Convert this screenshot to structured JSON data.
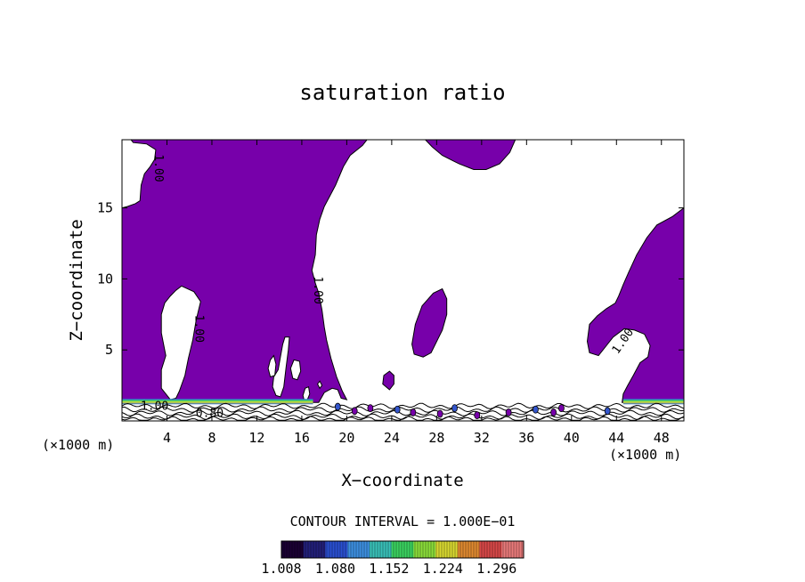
{
  "chart_data": {
    "type": "contour",
    "title": "saturation ratio",
    "xlabel": "X−coordinate",
    "ylabel": "Z−coordinate",
    "x_unit_label": "(×1000 m)",
    "z_unit_label": "(×1000 m)",
    "xlim": [
      0,
      50
    ],
    "ylim": [
      0,
      19.8
    ],
    "x_ticks": [
      4,
      8,
      12,
      16,
      20,
      24,
      28,
      32,
      36,
      40,
      44,
      48
    ],
    "y_ticks": [
      5,
      10,
      15
    ],
    "x_tick_labels": [
      "4",
      "8",
      "12",
      "16",
      "20",
      "24",
      "28",
      "32",
      "36",
      "40",
      "44",
      "48"
    ],
    "y_tick_labels": [
      "5",
      "10",
      "15"
    ],
    "contour_interval_text": "CONTOUR INTERVAL = 1.000E−01",
    "contour_labels": [
      {
        "text": "1.00",
        "x": 3.2,
        "z": 17.8,
        "rotation": 90
      },
      {
        "text": "1.00",
        "x": 17.4,
        "z": 9.2,
        "rotation": 90
      },
      {
        "text": "1.00",
        "x": 6.8,
        "z": 6.5,
        "rotation": 90
      },
      {
        "text": "1.00",
        "x": 44.6,
        "z": 5.6,
        "rotation": -55
      },
      {
        "text": "1.00",
        "x": 2.9,
        "z": 1.0,
        "rotation": 0
      },
      {
        "text": "0.80",
        "x": 7.8,
        "z": 0.5,
        "rotation": 0
      }
    ],
    "colorbar": {
      "min": 1.008,
      "max": 1.332,
      "tick_labels": [
        "1.008",
        "1.080",
        "1.152",
        "1.224",
        "1.296"
      ],
      "colors": [
        "#1a0033",
        "#22207a",
        "#2a4fd0",
        "#3d8fe0",
        "#39c0b8",
        "#3bd260",
        "#8bdc3a",
        "#d8d830",
        "#e08a30",
        "#d84848",
        "#e87a7a"
      ]
    },
    "fill_color": "#7700aa",
    "supersaturated_regions": [
      {
        "name": "left-plume",
        "points": [
          [
            0,
            15.0
          ],
          [
            0.5,
            15.1
          ],
          [
            1.2,
            15.3
          ],
          [
            1.6,
            15.5
          ],
          [
            1.7,
            16.6
          ],
          [
            2.0,
            17.4
          ],
          [
            2.5,
            17.9
          ],
          [
            2.9,
            18.4
          ],
          [
            3.0,
            19.1
          ],
          [
            2.2,
            19.5
          ],
          [
            1.0,
            19.6
          ],
          [
            0.8,
            19.8
          ],
          [
            21.8,
            19.8
          ],
          [
            21.4,
            19.4
          ],
          [
            20.3,
            18.7
          ],
          [
            19.7,
            17.9
          ],
          [
            19.0,
            16.6
          ],
          [
            18.0,
            15.1
          ],
          [
            17.6,
            14.2
          ],
          [
            17.3,
            13.1
          ],
          [
            17.2,
            11.7
          ],
          [
            16.9,
            10.6
          ],
          [
            17.2,
            9.7
          ],
          [
            17.5,
            9.0
          ],
          [
            17.8,
            7.8
          ],
          [
            18.0,
            6.6
          ],
          [
            18.2,
            5.7
          ],
          [
            18.6,
            4.4
          ],
          [
            19.1,
            3.1
          ],
          [
            19.6,
            2.1
          ],
          [
            20.0,
            1.5
          ],
          [
            19.5,
            1.6
          ],
          [
            19.2,
            2.2
          ],
          [
            18.7,
            2.3
          ],
          [
            18.0,
            2.0
          ],
          [
            17.5,
            1.3
          ],
          [
            0,
            1.3
          ]
        ]
      },
      {
        "name": "top-blob",
        "points": [
          [
            27.0,
            19.8
          ],
          [
            27.6,
            19.3
          ],
          [
            28.5,
            18.7
          ],
          [
            30.0,
            18.1
          ],
          [
            31.3,
            17.7
          ],
          [
            32.4,
            17.7
          ],
          [
            33.6,
            18.1
          ],
          [
            34.5,
            18.9
          ],
          [
            35.0,
            19.8
          ]
        ]
      },
      {
        "name": "right-plume",
        "points": [
          [
            50,
            15.0
          ],
          [
            49.0,
            14.4
          ],
          [
            47.6,
            13.8
          ],
          [
            46.7,
            12.9
          ],
          [
            45.8,
            11.7
          ],
          [
            45.1,
            10.5
          ],
          [
            44.6,
            9.6
          ],
          [
            44.2,
            8.8
          ],
          [
            43.9,
            8.3
          ],
          [
            43.1,
            7.9
          ],
          [
            42.3,
            7.4
          ],
          [
            41.6,
            6.8
          ],
          [
            41.4,
            5.6
          ],
          [
            41.6,
            4.8
          ],
          [
            42.4,
            4.6
          ],
          [
            43.0,
            5.2
          ],
          [
            43.7,
            5.9
          ],
          [
            44.7,
            6.5
          ],
          [
            45.6,
            6.4
          ],
          [
            46.5,
            6.1
          ],
          [
            47.0,
            5.3
          ],
          [
            46.8,
            4.5
          ],
          [
            46.1,
            4.1
          ],
          [
            45.5,
            3.2
          ],
          [
            45.0,
            2.5
          ],
          [
            44.6,
            1.9
          ],
          [
            44.5,
            1.3
          ],
          [
            50,
            1.3
          ]
        ]
      },
      {
        "name": "center-blob",
        "points": [
          [
            25.8,
            5.4
          ],
          [
            26.1,
            6.8
          ],
          [
            26.7,
            8.1
          ],
          [
            27.7,
            9.0
          ],
          [
            28.5,
            9.3
          ],
          [
            28.9,
            8.6
          ],
          [
            28.9,
            7.5
          ],
          [
            28.5,
            6.4
          ],
          [
            28.0,
            5.6
          ],
          [
            27.5,
            4.8
          ],
          [
            26.8,
            4.5
          ],
          [
            26.0,
            4.7
          ]
        ]
      },
      {
        "name": "small-blob",
        "points": [
          [
            23.2,
            2.6
          ],
          [
            23.3,
            3.2
          ],
          [
            23.8,
            3.5
          ],
          [
            24.2,
            3.2
          ],
          [
            24.2,
            2.6
          ],
          [
            23.8,
            2.2
          ]
        ]
      }
    ],
    "subsaturated_holes": [
      {
        "name": "left-hole",
        "points": [
          [
            4.8,
            9.2
          ],
          [
            5.3,
            9.5
          ],
          [
            6.4,
            9.1
          ],
          [
            7.0,
            8.4
          ],
          [
            6.6,
            7.1
          ],
          [
            6.3,
            5.7
          ],
          [
            5.9,
            4.4
          ],
          [
            5.6,
            3.2
          ],
          [
            5.1,
            2.1
          ],
          [
            4.8,
            1.6
          ],
          [
            4.3,
            1.5
          ],
          [
            3.5,
            2.3
          ],
          [
            3.5,
            3.6
          ],
          [
            3.9,
            4.6
          ],
          [
            3.5,
            6.2
          ],
          [
            3.5,
            7.5
          ],
          [
            3.8,
            8.3
          ],
          [
            4.3,
            8.8
          ]
        ]
      },
      {
        "name": "hole-a",
        "points": [
          [
            14.3,
            5.4
          ],
          [
            14.5,
            5.9
          ],
          [
            14.9,
            5.9
          ],
          [
            14.8,
            5.0
          ],
          [
            14.6,
            3.8
          ],
          [
            14.4,
            2.4
          ],
          [
            14.1,
            1.7
          ],
          [
            13.7,
            1.8
          ],
          [
            13.4,
            2.4
          ],
          [
            13.5,
            3.1
          ],
          [
            13.9,
            3.6
          ],
          [
            14.1,
            4.5
          ]
        ]
      },
      {
        "name": "hole-b",
        "points": [
          [
            13.2,
            4.3
          ],
          [
            13.5,
            4.6
          ],
          [
            13.7,
            4.0
          ],
          [
            13.6,
            3.2
          ],
          [
            13.2,
            3.1
          ],
          [
            13.0,
            3.7
          ]
        ]
      },
      {
        "name": "hole-c",
        "points": [
          [
            15.0,
            3.7
          ],
          [
            15.3,
            4.3
          ],
          [
            15.8,
            4.2
          ],
          [
            15.9,
            3.5
          ],
          [
            15.6,
            2.9
          ],
          [
            15.2,
            3.0
          ]
        ]
      },
      {
        "name": "hole-d",
        "points": [
          [
            16.1,
            1.8
          ],
          [
            16.3,
            2.3
          ],
          [
            16.6,
            2.4
          ],
          [
            16.7,
            1.9
          ],
          [
            16.5,
            1.5
          ],
          [
            16.2,
            1.5
          ]
        ]
      },
      {
        "name": "hole-e",
        "points": [
          [
            17.4,
            2.6
          ],
          [
            17.6,
            2.8
          ],
          [
            17.8,
            2.5
          ],
          [
            17.6,
            2.3
          ]
        ]
      }
    ],
    "band_layers": [
      {
        "z": 1.3,
        "x_start": 0.0,
        "x_end": 17.0
      },
      {
        "z": 1.3,
        "x_start": 44.6,
        "x_end": 50.0
      }
    ]
  }
}
